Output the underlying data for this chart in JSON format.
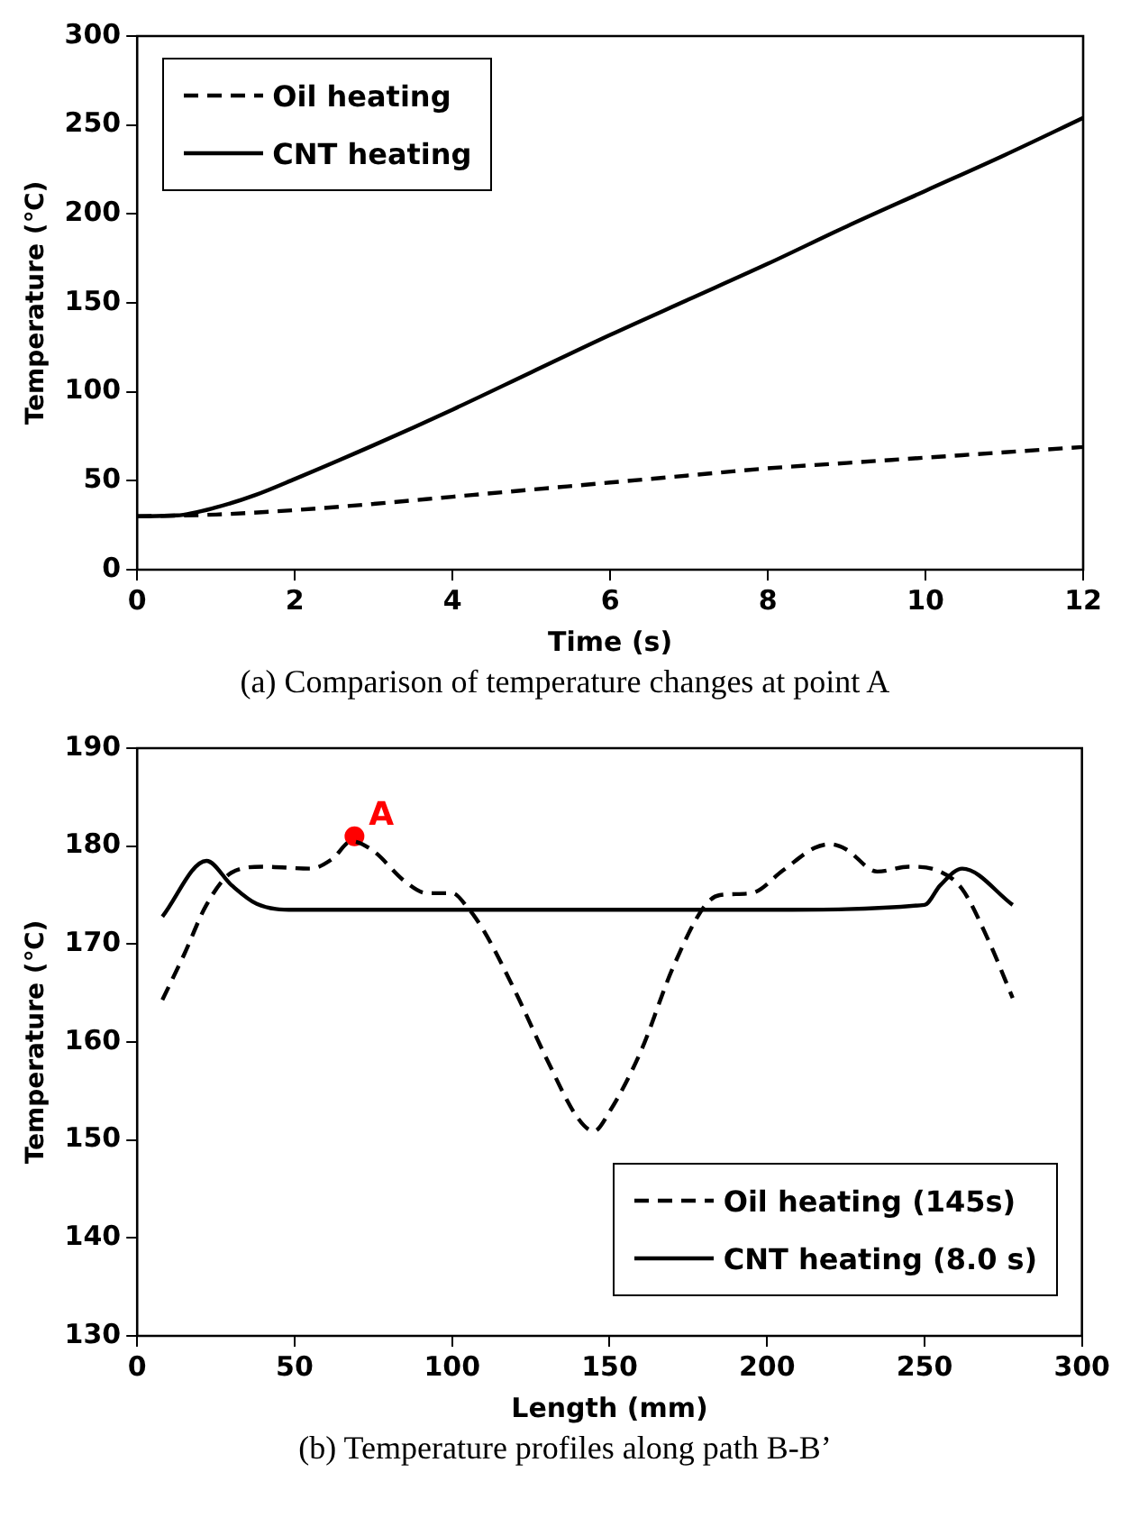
{
  "chart_data": [
    {
      "type": "line",
      "xlabel": "Time (s)",
      "ylabel": "Temperature (℃)",
      "xlim": [
        0,
        12
      ],
      "xticks": [
        0,
        2,
        4,
        6,
        8,
        10,
        12
      ],
      "ylim": [
        0,
        300
      ],
      "yticks": [
        0,
        50,
        100,
        150,
        200,
        250,
        300
      ],
      "grid": false,
      "legend": "top left",
      "marker": "none",
      "annotations": [
        "(a) Comparison of temperature changes at point A"
      ],
      "series": [
        {
          "name": "Oil heating",
          "color": "#000000",
          "line_style": "dashed",
          "x": [
            0,
            1,
            2,
            3,
            4,
            5,
            6,
            7,
            8,
            9,
            10,
            11,
            12
          ],
          "values": [
            30,
            31,
            33.5,
            37,
            41,
            45,
            49,
            53,
            57,
            60,
            63,
            66,
            69
          ]
        },
        {
          "name": "CNT heating",
          "color": "#000000",
          "line_style": "solid",
          "x": [
            0,
            0.5,
            1,
            1.5,
            2,
            3,
            4,
            5,
            6,
            7,
            8,
            9,
            10,
            11,
            12
          ],
          "values": [
            30,
            30.5,
            35,
            42,
            51,
            70,
            90,
            111,
            132,
            152,
            172,
            193,
            213,
            233,
            254
          ]
        }
      ]
    },
    {
      "type": "line",
      "xlabel": "Length (mm)",
      "ylabel": "Temperature (℃)",
      "xlim": [
        0,
        300
      ],
      "xticks": [
        0,
        50,
        100,
        150,
        200,
        250,
        300
      ],
      "ylim": [
        130,
        190
      ],
      "yticks": [
        130,
        140,
        150,
        160,
        170,
        180,
        190
      ],
      "grid": false,
      "legend": "bottom right",
      "marker": "none",
      "annotations": [
        {
          "text": "A",
          "x": 69,
          "y": 181
        },
        "(b) Temperature profiles along path B-B’"
      ],
      "series": [
        {
          "name": "Oil heating (145s)",
          "color": "#000000",
          "line_style": "dashed",
          "x": [
            8,
            15,
            22,
            30,
            40,
            55,
            62,
            68,
            75,
            85,
            92,
            100,
            105,
            110,
            120,
            130,
            140,
            145,
            150,
            160,
            170,
            180,
            185,
            195,
            205,
            215,
            220,
            225,
            235,
            245,
            255,
            262,
            270,
            278
          ],
          "values": [
            164.3,
            169,
            174,
            177.3,
            177.9,
            177.7,
            178.7,
            180.5,
            179.5,
            176.4,
            175.2,
            175.2,
            173.7,
            171.4,
            165.2,
            158.3,
            152.2,
            150.9,
            152.9,
            159.1,
            167.5,
            173.8,
            175,
            175.2,
            177.5,
            179.8,
            180.2,
            179.7,
            177.4,
            177.9,
            177.4,
            175.6,
            170.6,
            164.5
          ]
        },
        {
          "name": "CNT heating (8.0 s)",
          "color": "#000000",
          "line_style": "solid",
          "x": [
            8,
            22,
            30,
            38,
            50,
            100,
            150,
            200,
            250,
            255,
            262,
            278
          ],
          "values": [
            172.8,
            178.5,
            176,
            174.1,
            173.5,
            173.5,
            173.5,
            173.5,
            174,
            176,
            177.7,
            174
          ]
        },
        {
          "type": "scatter",
          "color": "#ff0000",
          "marker": "circle",
          "x": [
            69
          ],
          "values": [
            181
          ]
        }
      ]
    }
  ]
}
